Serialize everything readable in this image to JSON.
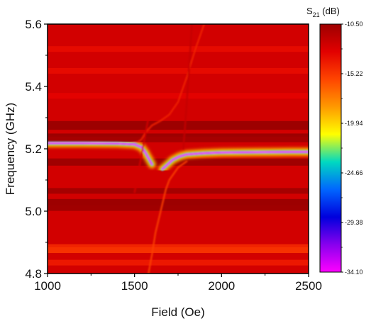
{
  "chart_data": {
    "type": "heatmap",
    "title": "",
    "xlabel": "Field (Oe)",
    "ylabel": "Frequency (GHz)",
    "xlim": [
      1000,
      2500
    ],
    "ylim": [
      4.8,
      5.6
    ],
    "x_ticks": [
      "1000",
      "1500",
      "2000",
      "2500"
    ],
    "y_ticks": [
      "4.8",
      "5.0",
      "5.2",
      "5.4",
      "5.6"
    ],
    "x_tick_values": [
      1000,
      1500,
      2000,
      2500
    ],
    "y_tick_values": [
      4.8,
      5.0,
      5.2,
      5.4,
      5.6
    ],
    "grid": false,
    "colorbar": {
      "title_main": "S",
      "title_sub": "21",
      "title_unit": " (dB)",
      "range": [
        -34.1,
        -10.5
      ],
      "tick_labels": [
        "-10.50",
        "-15.22",
        "-19.94",
        "-24.66",
        "-29.38",
        "-34.10"
      ],
      "tick_values": [
        -10.5,
        -15.22,
        -19.94,
        -24.66,
        -29.38,
        -34.1
      ],
      "colormap": [
        "#9d0000",
        "#e20000",
        "#ff4500",
        "#ff9900",
        "#ffff00",
        "#00d9c0",
        "#0066ff",
        "#0000dd",
        "#8800ee",
        "#ff00ff"
      ]
    },
    "background_level_db": -12.5,
    "horizontal_bands": [
      {
        "f": 5.28,
        "db": -10.5
      },
      {
        "f": 5.27,
        "db": -10.5
      },
      {
        "f": 5.24,
        "db": -10.5
      },
      {
        "f": 5.23,
        "db": -10.8
      },
      {
        "f": 5.16,
        "db": -10.6
      },
      {
        "f": 5.155,
        "db": -10.6
      },
      {
        "f": 5.065,
        "db": -10.8
      },
      {
        "f": 5.03,
        "db": -10.5
      },
      {
        "f": 5.02,
        "db": -10.5
      },
      {
        "f": 5.01,
        "db": -10.6
      },
      {
        "f": 4.885,
        "db": -14.5
      },
      {
        "f": 4.875,
        "db": -15.0
      },
      {
        "f": 4.835,
        "db": -14.0
      },
      {
        "f": 5.45,
        "db": -13.5
      },
      {
        "f": 5.52,
        "db": -13.5
      },
      {
        "f": 5.37,
        "db": -13.2
      }
    ],
    "series": [
      {
        "name": "",
        "x": [
          1000,
          1200,
          1400,
          1480,
          1520,
          1540,
          1560,
          1600,
          1650,
          1700,
          1750,
          1800,
          1850,
          1900
        ],
        "y": [
          5.215,
          5.215,
          5.216,
          5.218,
          5.222,
          5.23,
          5.25,
          5.275,
          5.29,
          5.31,
          5.35,
          5.43,
          5.52,
          5.6
        ],
        "db": -14.5
      },
      {
        "name": "",
        "x": [
          1000,
          1200,
          1400,
          1500,
          1540,
          1560,
          1580,
          1600
        ],
        "y": [
          5.218,
          5.218,
          5.217,
          5.214,
          5.205,
          5.19,
          5.17,
          5.15
        ],
        "db": -34.0
      },
      {
        "name": "",
        "x": [
          1660,
          1680,
          1700,
          1720,
          1760,
          1800,
          1900,
          2000,
          2200,
          2400,
          2500
        ],
        "y": [
          5.135,
          5.145,
          5.155,
          5.165,
          5.176,
          5.182,
          5.186,
          5.188,
          5.189,
          5.19,
          5.19
        ],
        "db": -34.0
      },
      {
        "name": "",
        "x": [
          1580,
          1600,
          1620,
          1650,
          1680,
          1700,
          1750,
          1800
        ],
        "y": [
          4.8,
          4.86,
          4.93,
          5.0,
          5.07,
          5.1,
          5.14,
          5.16
        ],
        "db": -15.5
      },
      {
        "name": "",
        "x": [
          1500,
          1520,
          1540,
          1560,
          1580
        ],
        "y": [
          5.06,
          5.12,
          5.18,
          5.24,
          5.3
        ],
        "db": -12.5
      },
      {
        "name": "",
        "x": [
          1780,
          1790,
          1800,
          1810,
          1820,
          1830
        ],
        "y": [
          5.2,
          5.27,
          5.35,
          5.43,
          5.52,
          5.6
        ],
        "db": -12.0
      }
    ]
  }
}
